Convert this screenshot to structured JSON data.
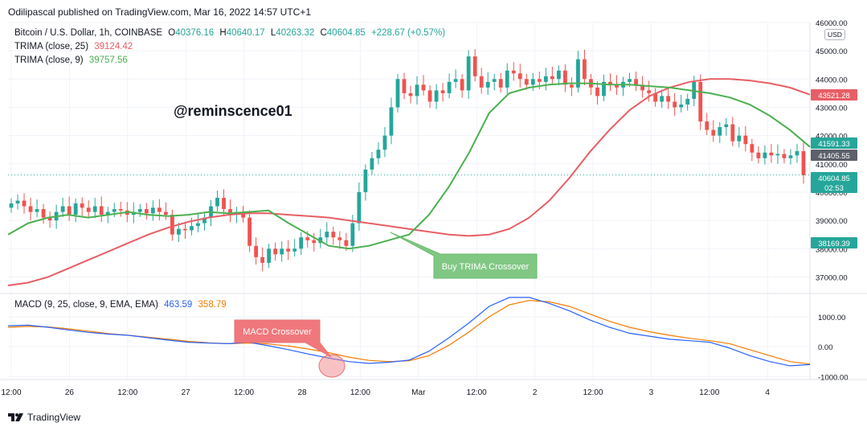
{
  "header": {
    "text": "Odilipascal published on TradingView.com, Mar 16, 2022 14:57 UTC+1"
  },
  "legend": {
    "symbol": "Bitcoin / U.S. Dollar, 1h, COINBASE",
    "o_label": "O",
    "o_value": "40376.16",
    "h_label": "H",
    "h_value": "40640.17",
    "l_label": "L",
    "l_value": "40263.32",
    "c_label": "C",
    "c_value": "40604.85",
    "change": "+228.67 (+0.57%)",
    "trima25_label": "TRIMA (close, 25)",
    "trima25_value": "39124.42",
    "trima9_label": "TRIMA (close, 9)",
    "trima9_value": "39757.56",
    "macd_label": "MACD (9, 25, close, 9, EMA, EMA)",
    "macd_value": "463.59",
    "signal_value": "358.79"
  },
  "watermark": "@reminscence01",
  "currency": "USD",
  "footer": {
    "brand": "TradingView"
  },
  "colors": {
    "up": "#26a69a",
    "down": "#ef5350",
    "trima25": "#e85e65",
    "trima9": "#4caf50",
    "macd": "#2962ff",
    "signal": "#f57c00",
    "grid": "#f0f3fa",
    "text": "#131722",
    "callout_green": "#81c784",
    "callout_red": "#f0787c"
  },
  "chart_data": [
    {
      "type": "candlestick",
      "title": "Bitcoin / U.S. Dollar, 1h, COINBASE",
      "ylim": [
        36500,
        46000
      ],
      "y_ticks": [
        "37000.00",
        "38000.00",
        "39000.00",
        "40000.00",
        "41000.00",
        "42000.00",
        "43000.00",
        "44000.00",
        "45000.00",
        "46000.00"
      ],
      "x_ticks": [
        "12:00",
        "26",
        "12:00",
        "27",
        "12:00",
        "28",
        "12:00",
        "Mar",
        "12:00",
        "2",
        "12:00",
        "3",
        "12:00",
        "4"
      ],
      "price_labels": [
        {
          "value": "43521.28",
          "series": "trima25"
        },
        {
          "value": "41591.33",
          "series": "trima9"
        },
        {
          "value": "41405.55",
          "series": "last"
        },
        {
          "value": "40604.85",
          "series": "close"
        },
        {
          "value": "02:53",
          "series": "countdown"
        },
        {
          "value": "38169.39",
          "series": "level"
        }
      ],
      "close": [
        39600,
        39700,
        39500,
        39300,
        39400,
        39100,
        39000,
        39300,
        39500,
        39200,
        39600,
        39450,
        39300,
        39500,
        39200,
        39300,
        39400,
        39350,
        39200,
        39300,
        39400,
        39250,
        39450,
        39300,
        39200,
        38500,
        38700,
        38650,
        38800,
        38900,
        39100,
        39500,
        39800,
        39400,
        39200,
        39300,
        39100,
        38100,
        37700,
        37500,
        38000,
        37800,
        38000,
        37900,
        38000,
        38400,
        38300,
        38200,
        38400,
        38600,
        38400,
        38300,
        38100,
        38900,
        40000,
        40800,
        41200,
        41500,
        42000,
        43000,
        44000,
        43500,
        43400,
        43800,
        43600,
        43200,
        43600,
        43500,
        43900,
        44000,
        43600,
        44800,
        44100,
        43700,
        43900,
        44000,
        43700,
        44300,
        44200,
        44000,
        43800,
        44000,
        43900,
        44100,
        44000,
        44300,
        43800,
        43700,
        44700,
        44000,
        43700,
        43400,
        43900,
        43800,
        43700,
        43900,
        44000,
        43800,
        43600,
        43500,
        43200,
        43400,
        43200,
        43000,
        43100,
        43300,
        43900,
        42500,
        42200,
        42000,
        42300,
        42400,
        41800,
        42000,
        41700,
        41400,
        41200,
        41400,
        41300,
        41350,
        41200,
        41300,
        41450,
        40600
      ],
      "series": [
        {
          "name": "TRIMA (close, 25)",
          "values": [
            36700,
            36800,
            37000,
            37300,
            37600,
            37900,
            38200,
            38500,
            38750,
            38950,
            39100,
            39200,
            39250,
            39250,
            39200,
            39150,
            39100,
            39000,
            38900,
            38800,
            38700,
            38600,
            38500,
            38450,
            38500,
            38700,
            39100,
            39700,
            40500,
            41400,
            42200,
            42900,
            43400,
            43700,
            43900,
            44000,
            44000,
            43950,
            43850,
            43700,
            43450
          ]
        },
        {
          "name": "TRIMA (close, 9)",
          "values": [
            38500,
            38900,
            39100,
            39200,
            39100,
            39200,
            39300,
            39200,
            39150,
            39200,
            39300,
            39250,
            39300,
            39350,
            38900,
            38500,
            38100,
            38000,
            38100,
            38300,
            38500,
            39200,
            40200,
            41400,
            42800,
            43500,
            43700,
            43800,
            43850,
            43850,
            43800,
            43800,
            43750,
            43700,
            43600,
            43500,
            43350,
            43100,
            42700,
            42200,
            41600
          ]
        }
      ]
    },
    {
      "type": "line",
      "title": "MACD (9, 25, close, 9, EMA, EMA)",
      "ylim": [
        -1100,
        1700
      ],
      "y_ticks": [
        "1000.00",
        "0.00",
        "-1000.00"
      ],
      "series": [
        {
          "name": "MACD",
          "values": [
            700,
            720,
            650,
            560,
            480,
            420,
            380,
            300,
            220,
            150,
            120,
            100,
            150,
            30,
            -100,
            -250,
            -380,
            -500,
            -560,
            -520,
            -450,
            -150,
            300,
            800,
            1350,
            1650,
            1650,
            1450,
            1200,
            900,
            650,
            450,
            350,
            250,
            200,
            150,
            -50,
            -300,
            -500,
            -640,
            -600
          ]
        },
        {
          "name": "Signal",
          "values": [
            650,
            680,
            660,
            600,
            520,
            440,
            380,
            320,
            250,
            180,
            130,
            100,
            120,
            90,
            20,
            -80,
            -200,
            -350,
            -460,
            -500,
            -470,
            -300,
            50,
            500,
            1000,
            1400,
            1550,
            1500,
            1350,
            1100,
            850,
            650,
            500,
            380,
            280,
            200,
            100,
            -100,
            -300,
            -500,
            -580
          ]
        }
      ]
    }
  ],
  "annotations": [
    {
      "text": "Buy TRIMA Crossover"
    },
    {
      "text": "MACD Crossover"
    }
  ]
}
